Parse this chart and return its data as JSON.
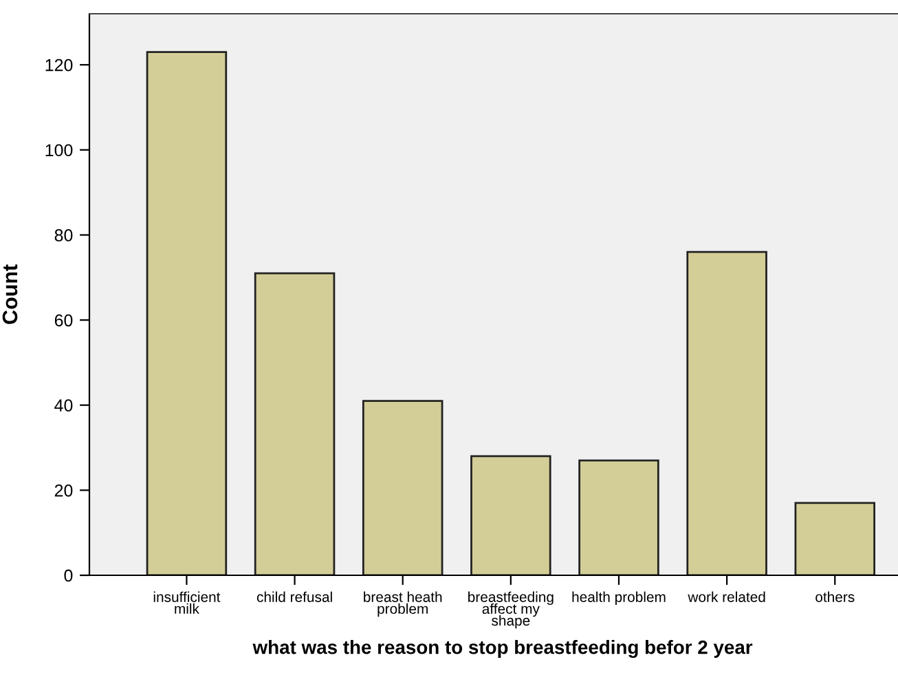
{
  "chart_data": {
    "type": "bar",
    "categories": [
      "insufficient\nmilk",
      "child refusal",
      "breast heath\nproblem",
      "breastfeeding\naffect my\nshape",
      "health problem",
      "work related",
      "others"
    ],
    "values": [
      123,
      71,
      41,
      28,
      27,
      76,
      17
    ],
    "color": "#d3ce97",
    "xlabel": "what was the reason to stop breastfeeding befor 2 year",
    "ylabel": "Count",
    "ylim": [
      0,
      132
    ],
    "yticks": [
      0,
      20,
      40,
      60,
      80,
      100,
      120
    ],
    "grid": false
  }
}
